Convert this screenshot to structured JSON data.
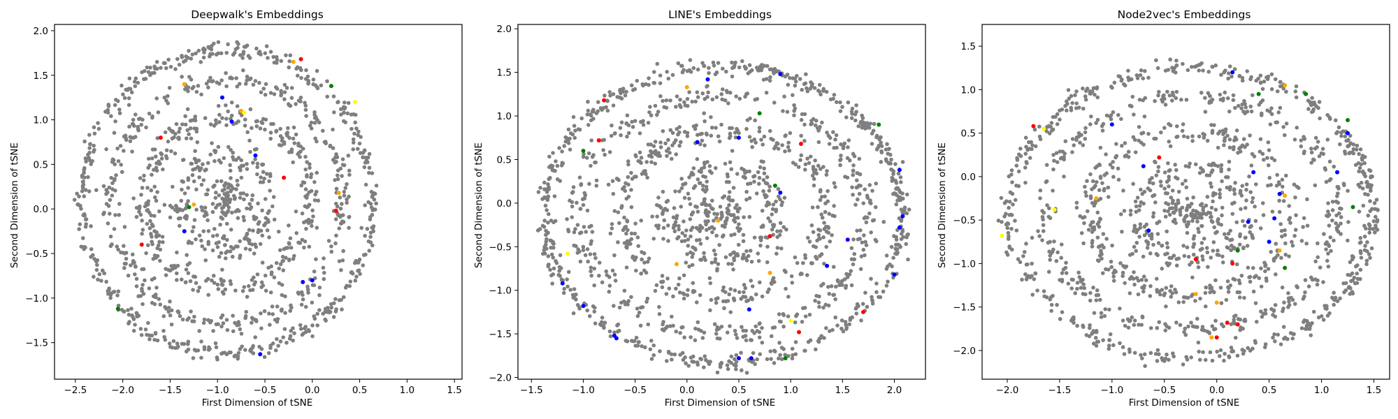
{
  "figure": {
    "background": "#ffffff",
    "point_color": "#7f7f7f",
    "highlight_colors": [
      "#0000ff",
      "#ff0000",
      "#008000",
      "#ffa500",
      "#ffff00"
    ]
  },
  "chart_data": [
    {
      "type": "scatter",
      "title": "Deepwalk's Embeddings",
      "xlabel": "First Dimension of tSNE",
      "ylabel": "Second Dimension of tSNE",
      "xlim": [
        -2.72,
        1.58
      ],
      "ylim": [
        -1.91,
        2.07
      ],
      "xticks": [
        -2.5,
        -2.0,
        -1.5,
        -1.0,
        -0.5,
        0.0,
        0.5,
        1.0,
        1.5
      ],
      "yticks": [
        -1.5,
        -1.0,
        -0.5,
        0.0,
        0.5,
        1.0,
        1.5,
        2.0
      ],
      "grid": false,
      "legend": "none",
      "series": [
        {
          "shape": "ring",
          "cx": -0.9,
          "cy": 0.08,
          "rx": 1.58,
          "ry": 1.76,
          "count": 1450,
          "color": "#7f7f7f"
        }
      ],
      "highlights": {
        "blue": [
          [
            -0.95,
            1.25
          ],
          [
            -0.85,
            0.98
          ],
          [
            -0.6,
            0.6
          ],
          [
            -1.35,
            -0.25
          ],
          [
            -0.1,
            -0.82
          ],
          [
            0.0,
            -0.8
          ],
          [
            -0.55,
            -1.63
          ]
        ],
        "red": [
          [
            -0.12,
            1.68
          ],
          [
            -1.6,
            0.8
          ],
          [
            0.25,
            -0.02
          ],
          [
            -1.8,
            -0.4
          ],
          [
            -0.3,
            0.35
          ]
        ],
        "green": [
          [
            0.2,
            1.38
          ],
          [
            -2.05,
            -1.12
          ],
          [
            -1.3,
            0.02
          ]
        ],
        "orange": [
          [
            -0.2,
            1.65
          ],
          [
            -1.35,
            1.4
          ],
          [
            0.28,
            0.18
          ],
          [
            -1.25,
            0.05
          ],
          [
            -0.75,
            1.1
          ]
        ],
        "yellow": [
          [
            0.45,
            1.2
          ],
          [
            -0.72,
            1.08
          ]
        ]
      }
    },
    {
      "type": "scatter",
      "title": "LINE's Embeddings",
      "xlabel": "First Dimension of tSNE",
      "ylabel": "Second Dimension of tSNE",
      "xlim": [
        -1.63,
        2.3
      ],
      "ylim": [
        -2.02,
        2.05
      ],
      "xticks": [
        -1.5,
        -1.0,
        -0.5,
        0.0,
        0.5,
        1.0,
        1.5,
        2.0
      ],
      "yticks": [
        -2.0,
        -1.5,
        -1.0,
        -0.5,
        0.0,
        0.5,
        1.0,
        1.5,
        2.0
      ],
      "grid": false,
      "legend": "none",
      "series": [
        {
          "shape": "ring",
          "cx": 0.35,
          "cy": -0.13,
          "rx": 1.78,
          "ry": 1.75,
          "count": 1650,
          "color": "#7f7f7f"
        }
      ],
      "highlights": {
        "blue": [
          [
            0.2,
            1.42
          ],
          [
            0.9,
            1.48
          ],
          [
            0.1,
            0.7
          ],
          [
            0.5,
            0.75
          ],
          [
            0.9,
            0.12
          ],
          [
            2.05,
            0.38
          ],
          [
            2.08,
            -0.15
          ],
          [
            2.05,
            -0.28
          ],
          [
            1.55,
            -0.42
          ],
          [
            1.35,
            -0.72
          ],
          [
            2.0,
            -0.82
          ],
          [
            -1.2,
            -0.92
          ],
          [
            -1.0,
            -1.18
          ],
          [
            -0.7,
            -1.52
          ],
          [
            -0.68,
            -1.55
          ],
          [
            0.6,
            -1.22
          ],
          [
            0.5,
            -1.78
          ],
          [
            0.62,
            -1.78
          ]
        ],
        "red": [
          [
            -0.8,
            1.18
          ],
          [
            -0.85,
            0.72
          ],
          [
            1.1,
            0.68
          ],
          [
            0.8,
            -0.38
          ],
          [
            1.08,
            -1.48
          ],
          [
            1.7,
            -1.25
          ]
        ],
        "green": [
          [
            -1.0,
            0.6
          ],
          [
            0.7,
            1.03
          ],
          [
            0.85,
            0.2
          ],
          [
            1.85,
            0.9
          ],
          [
            0.95,
            -1.78
          ]
        ],
        "orange": [
          [
            0.0,
            1.33
          ],
          [
            -0.1,
            -0.7
          ],
          [
            0.3,
            -0.2
          ],
          [
            0.8,
            -0.8
          ]
        ],
        "yellow": [
          [
            -1.15,
            -0.58
          ],
          [
            1.0,
            -1.35
          ]
        ]
      }
    },
    {
      "type": "scatter",
      "title": "Node2vec's Embeddings",
      "xlabel": "First Dimension of tSNE",
      "ylabel": "Second Dimension of tSNE",
      "xlim": [
        -2.24,
        1.65
      ],
      "ylim": [
        -2.33,
        1.75
      ],
      "xticks": [
        -2.0,
        -1.5,
        -1.0,
        -0.5,
        0.0,
        0.5,
        1.0,
        1.5
      ],
      "yticks": [
        -2.0,
        -1.5,
        -1.0,
        -0.5,
        0.0,
        0.5,
        1.0,
        1.5
      ],
      "grid": false,
      "legend": "none",
      "series": [
        {
          "shape": "ring",
          "cx": -0.25,
          "cy": -0.42,
          "rx": 1.78,
          "ry": 1.72,
          "count": 1550,
          "color": "#7f7f7f"
        }
      ],
      "highlights": {
        "blue": [
          [
            0.15,
            1.2
          ],
          [
            -1.0,
            0.6
          ],
          [
            -0.7,
            0.12
          ],
          [
            -0.65,
            -0.62
          ],
          [
            0.35,
            0.05
          ],
          [
            0.6,
            -0.2
          ],
          [
            0.55,
            -0.48
          ],
          [
            0.5,
            -0.75
          ],
          [
            1.15,
            0.05
          ],
          [
            1.25,
            0.5
          ],
          [
            0.3,
            -0.52
          ]
        ],
        "red": [
          [
            -1.75,
            0.58
          ],
          [
            -0.55,
            0.22
          ],
          [
            -0.2,
            -0.95
          ],
          [
            0.15,
            -1.0
          ],
          [
            0.1,
            -1.68
          ],
          [
            0.2,
            -1.7
          ],
          [
            0.0,
            -1.85
          ]
        ],
        "green": [
          [
            0.85,
            0.95
          ],
          [
            1.25,
            0.65
          ],
          [
            0.65,
            -1.05
          ],
          [
            1.3,
            -0.35
          ],
          [
            0.2,
            -0.85
          ],
          [
            0.4,
            0.95
          ]
        ],
        "orange": [
          [
            0.65,
            1.05
          ],
          [
            -1.15,
            -0.25
          ],
          [
            0.65,
            -0.22
          ],
          [
            0.6,
            -0.85
          ],
          [
            -0.2,
            -1.35
          ],
          [
            -0.05,
            -1.85
          ],
          [
            0.0,
            -1.45
          ]
        ],
        "yellow": [
          [
            -1.65,
            0.55
          ],
          [
            -1.55,
            -0.38
          ],
          [
            -2.05,
            -0.68
          ]
        ]
      }
    }
  ]
}
